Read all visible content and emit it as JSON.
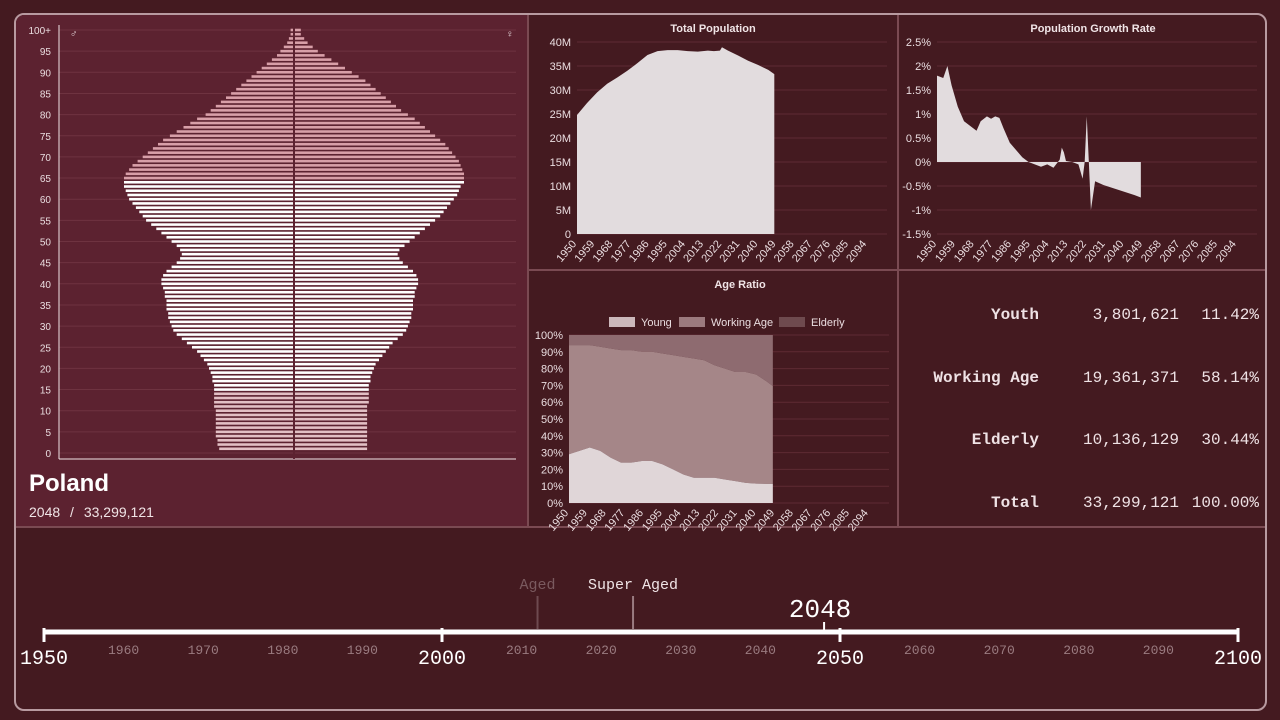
{
  "country": {
    "name": "Poland",
    "year": "2048",
    "separator": "/",
    "total": "33,299,121"
  },
  "pyramid": {
    "male_symbol": "♂",
    "female_symbol": "♀",
    "age_labels": [
      "100+",
      "95",
      "90",
      "85",
      "80",
      "75",
      "70",
      "65",
      "60",
      "55",
      "50",
      "45",
      "40",
      "35",
      "30",
      "25",
      "20",
      "15",
      "10",
      "5",
      "0"
    ],
    "colors": {
      "young": "#e2bfc4",
      "working": "#ffffff",
      "elderly": "#d89fa8"
    },
    "male_by_age_group": [
      [
        0,
        0.0
      ],
      [
        1,
        0.44
      ],
      [
        2,
        0.45
      ],
      [
        3,
        0.45
      ],
      [
        4,
        0.46
      ],
      [
        5,
        0.46
      ],
      [
        6,
        0.46
      ],
      [
        7,
        0.46
      ],
      [
        8,
        0.46
      ],
      [
        9,
        0.46
      ],
      [
        10,
        0.46
      ],
      [
        11,
        0.47
      ],
      [
        12,
        0.47
      ],
      [
        13,
        0.47
      ],
      [
        14,
        0.47
      ],
      [
        15,
        0.47
      ],
      [
        16,
        0.47
      ],
      [
        17,
        0.48
      ],
      [
        18,
        0.48
      ],
      [
        19,
        0.49
      ],
      [
        20,
        0.5
      ],
      [
        21,
        0.51
      ],
      [
        22,
        0.53
      ],
      [
        23,
        0.55
      ],
      [
        24,
        0.57
      ],
      [
        25,
        0.6
      ],
      [
        26,
        0.63
      ],
      [
        27,
        0.66
      ],
      [
        28,
        0.69
      ],
      [
        29,
        0.71
      ],
      [
        30,
        0.72
      ],
      [
        31,
        0.73
      ],
      [
        32,
        0.74
      ],
      [
        33,
        0.74
      ],
      [
        34,
        0.75
      ],
      [
        35,
        0.75
      ],
      [
        36,
        0.75
      ],
      [
        37,
        0.76
      ],
      [
        38,
        0.76
      ],
      [
        39,
        0.77
      ],
      [
        40,
        0.78
      ],
      [
        41,
        0.78
      ],
      [
        42,
        0.77
      ],
      [
        43,
        0.75
      ],
      [
        44,
        0.72
      ],
      [
        45,
        0.69
      ],
      [
        46,
        0.67
      ],
      [
        47,
        0.66
      ],
      [
        48,
        0.67
      ],
      [
        49,
        0.69
      ],
      [
        50,
        0.72
      ],
      [
        51,
        0.75
      ],
      [
        52,
        0.78
      ],
      [
        53,
        0.81
      ],
      [
        54,
        0.84
      ],
      [
        55,
        0.87
      ],
      [
        56,
        0.89
      ],
      [
        57,
        0.91
      ],
      [
        58,
        0.93
      ],
      [
        59,
        0.95
      ],
      [
        60,
        0.97
      ],
      [
        61,
        0.98
      ],
      [
        62,
        0.99
      ],
      [
        63,
        1.0
      ],
      [
        64,
        1.0
      ],
      [
        65,
        1.0
      ],
      [
        66,
        0.99
      ],
      [
        67,
        0.97
      ],
      [
        68,
        0.95
      ],
      [
        69,
        0.92
      ],
      [
        70,
        0.89
      ],
      [
        71,
        0.86
      ],
      [
        72,
        0.83
      ],
      [
        73,
        0.8
      ],
      [
        74,
        0.77
      ],
      [
        75,
        0.73
      ],
      [
        76,
        0.69
      ],
      [
        77,
        0.65
      ],
      [
        78,
        0.61
      ],
      [
        79,
        0.57
      ],
      [
        80,
        0.52
      ],
      [
        81,
        0.49
      ],
      [
        82,
        0.46
      ],
      [
        83,
        0.43
      ],
      [
        84,
        0.4
      ],
      [
        85,
        0.37
      ],
      [
        86,
        0.34
      ],
      [
        87,
        0.31
      ],
      [
        88,
        0.28
      ],
      [
        89,
        0.25
      ],
      [
        90,
        0.22
      ],
      [
        91,
        0.19
      ],
      [
        92,
        0.16
      ],
      [
        93,
        0.13
      ],
      [
        94,
        0.1
      ],
      [
        95,
        0.08
      ],
      [
        96,
        0.06
      ],
      [
        97,
        0.04
      ],
      [
        98,
        0.03
      ],
      [
        99,
        0.02
      ],
      [
        100,
        0.02
      ]
    ],
    "female_by_age_group": [
      [
        0,
        0.0
      ],
      [
        1,
        0.43
      ],
      [
        2,
        0.43
      ],
      [
        3,
        0.43
      ],
      [
        4,
        0.43
      ],
      [
        5,
        0.43
      ],
      [
        6,
        0.43
      ],
      [
        7,
        0.43
      ],
      [
        8,
        0.43
      ],
      [
        9,
        0.43
      ],
      [
        10,
        0.43
      ],
      [
        11,
        0.43
      ],
      [
        12,
        0.44
      ],
      [
        13,
        0.44
      ],
      [
        14,
        0.44
      ],
      [
        15,
        0.44
      ],
      [
        16,
        0.44
      ],
      [
        17,
        0.45
      ],
      [
        18,
        0.45
      ],
      [
        19,
        0.46
      ],
      [
        20,
        0.47
      ],
      [
        21,
        0.48
      ],
      [
        22,
        0.5
      ],
      [
        23,
        0.52
      ],
      [
        24,
        0.54
      ],
      [
        25,
        0.56
      ],
      [
        26,
        0.58
      ],
      [
        27,
        0.61
      ],
      [
        28,
        0.64
      ],
      [
        29,
        0.66
      ],
      [
        30,
        0.67
      ],
      [
        31,
        0.68
      ],
      [
        32,
        0.69
      ],
      [
        33,
        0.69
      ],
      [
        34,
        0.7
      ],
      [
        35,
        0.7
      ],
      [
        36,
        0.7
      ],
      [
        37,
        0.71
      ],
      [
        38,
        0.71
      ],
      [
        39,
        0.72
      ],
      [
        40,
        0.73
      ],
      [
        41,
        0.73
      ],
      [
        42,
        0.72
      ],
      [
        43,
        0.7
      ],
      [
        44,
        0.67
      ],
      [
        45,
        0.64
      ],
      [
        46,
        0.62
      ],
      [
        47,
        0.61
      ],
      [
        48,
        0.62
      ],
      [
        49,
        0.65
      ],
      [
        50,
        0.68
      ],
      [
        51,
        0.71
      ],
      [
        52,
        0.74
      ],
      [
        53,
        0.77
      ],
      [
        54,
        0.8
      ],
      [
        55,
        0.83
      ],
      [
        56,
        0.86
      ],
      [
        57,
        0.88
      ],
      [
        58,
        0.9
      ],
      [
        59,
        0.92
      ],
      [
        60,
        0.94
      ],
      [
        61,
        0.96
      ],
      [
        62,
        0.97
      ],
      [
        63,
        0.98
      ],
      [
        64,
        1.0
      ],
      [
        65,
        1.0
      ],
      [
        66,
        1.0
      ],
      [
        67,
        0.99
      ],
      [
        68,
        0.98
      ],
      [
        69,
        0.97
      ],
      [
        70,
        0.95
      ],
      [
        71,
        0.93
      ],
      [
        72,
        0.91
      ],
      [
        73,
        0.89
      ],
      [
        74,
        0.86
      ],
      [
        75,
        0.83
      ],
      [
        76,
        0.8
      ],
      [
        77,
        0.77
      ],
      [
        78,
        0.74
      ],
      [
        79,
        0.71
      ],
      [
        80,
        0.67
      ],
      [
        81,
        0.63
      ],
      [
        82,
        0.6
      ],
      [
        83,
        0.57
      ],
      [
        84,
        0.54
      ],
      [
        85,
        0.51
      ],
      [
        86,
        0.48
      ],
      [
        87,
        0.45
      ],
      [
        88,
        0.42
      ],
      [
        89,
        0.38
      ],
      [
        90,
        0.34
      ],
      [
        91,
        0.3
      ],
      [
        92,
        0.26
      ],
      [
        93,
        0.22
      ],
      [
        94,
        0.18
      ],
      [
        95,
        0.14
      ],
      [
        96,
        0.11
      ],
      [
        97,
        0.08
      ],
      [
        98,
        0.06
      ],
      [
        99,
        0.04
      ],
      [
        100,
        0.04
      ]
    ]
  },
  "chart_data": [
    {
      "type": "area",
      "title": "Total Population",
      "x_ticks": [
        "1950",
        "1959",
        "1968",
        "1977",
        "1986",
        "1995",
        "2004",
        "2013",
        "2022",
        "2031",
        "2040",
        "2049",
        "2058",
        "2067",
        "2076",
        "2085",
        "2094"
      ],
      "y_ticks": [
        "40M",
        "35M",
        "30M",
        "25M",
        "20M",
        "15M",
        "10M",
        "5M",
        "0"
      ],
      "xlim": [
        1950,
        2100
      ],
      "ylim": [
        0,
        40000000
      ],
      "points": [
        [
          1950,
          24800000
        ],
        [
          1955,
          27300000
        ],
        [
          1960,
          29500000
        ],
        [
          1965,
          31300000
        ],
        [
          1970,
          32600000
        ],
        [
          1975,
          34000000
        ],
        [
          1980,
          35600000
        ],
        [
          1985,
          37300000
        ],
        [
          1990,
          38100000
        ],
        [
          1995,
          38300000
        ],
        [
          2000,
          38300000
        ],
        [
          2005,
          38100000
        ],
        [
          2010,
          38000000
        ],
        [
          2015,
          38200000
        ],
        [
          2018,
          38100000
        ],
        [
          2021,
          38200000
        ],
        [
          2022,
          38900000
        ],
        [
          2025,
          38200000
        ],
        [
          2030,
          37200000
        ],
        [
          2035,
          36100000
        ],
        [
          2040,
          35200000
        ],
        [
          2045,
          34200000
        ],
        [
          2048,
          33299121
        ]
      ],
      "color": "#e2dcde"
    },
    {
      "type": "area",
      "title": "Population Growth Rate",
      "x_ticks": [
        "1950",
        "1959",
        "1968",
        "1977",
        "1986",
        "1995",
        "2004",
        "2013",
        "2022",
        "2031",
        "2040",
        "2049",
        "2058",
        "2067",
        "2076",
        "2085",
        "2094"
      ],
      "y_ticks": [
        "2.5%",
        "2%",
        "1.5%",
        "1%",
        "0.5%",
        "0%",
        "-0.5%",
        "-1%",
        "-1.5%"
      ],
      "xlim": [
        1950,
        2100
      ],
      "ylim": [
        -1.5,
        2.5
      ],
      "points": [
        [
          1950,
          1.8
        ],
        [
          1953,
          1.75
        ],
        [
          1955,
          2.0
        ],
        [
          1957,
          1.6
        ],
        [
          1960,
          1.15
        ],
        [
          1963,
          0.85
        ],
        [
          1966,
          0.75
        ],
        [
          1969,
          0.65
        ],
        [
          1971,
          0.85
        ],
        [
          1974,
          0.95
        ],
        [
          1976,
          0.9
        ],
        [
          1978,
          0.95
        ],
        [
          1980,
          0.92
        ],
        [
          1982,
          0.7
        ],
        [
          1985,
          0.4
        ],
        [
          1988,
          0.25
        ],
        [
          1991,
          0.1
        ],
        [
          1994,
          0.0
        ],
        [
          1997,
          -0.05
        ],
        [
          2000,
          -0.1
        ],
        [
          2003,
          -0.05
        ],
        [
          2006,
          -0.12
        ],
        [
          2009,
          0.05
        ],
        [
          2010,
          0.3
        ],
        [
          2011,
          0.2
        ],
        [
          2012,
          0.02
        ],
        [
          2015,
          0.0
        ],
        [
          2018,
          -0.05
        ],
        [
          2020,
          -0.35
        ],
        [
          2021,
          0.0
        ],
        [
          2022,
          0.95
        ],
        [
          2023,
          0.0
        ],
        [
          2024,
          -1.0
        ],
        [
          2026,
          -0.4
        ],
        [
          2030,
          -0.48
        ],
        [
          2035,
          -0.55
        ],
        [
          2040,
          -0.62
        ],
        [
          2045,
          -0.69
        ],
        [
          2048,
          -0.74
        ]
      ],
      "color": "#e2dcde"
    },
    {
      "type": "area",
      "title": "Age Ratio",
      "legend": [
        "Young",
        "Working Age",
        "Elderly"
      ],
      "legend_colors": [
        "#ccb8bb",
        "#9c7a7e",
        "#6e4a4e"
      ],
      "x_ticks": [
        "1950",
        "1959",
        "1968",
        "1977",
        "1986",
        "1995",
        "2004",
        "2013",
        "2022",
        "2031",
        "2040",
        "2049",
        "2058",
        "2067",
        "2076",
        "2085",
        "2094"
      ],
      "y_ticks": [
        "100%",
        "90%",
        "80%",
        "70%",
        "60%",
        "50%",
        "40%",
        "30%",
        "20%",
        "10%",
        "0%"
      ],
      "xlim": [
        1950,
        2100
      ],
      "ylim": [
        0,
        100
      ],
      "x": [
        1950,
        1955,
        1960,
        1965,
        1970,
        1975,
        1980,
        1985,
        1990,
        1995,
        2000,
        2005,
        2010,
        2015,
        2020,
        2025,
        2030,
        2035,
        2040,
        2045,
        2048
      ],
      "series": [
        {
          "name": "Young",
          "values": [
            29,
            31,
            33,
            31,
            27,
            24,
            24,
            25,
            25,
            23,
            20,
            17,
            15,
            15,
            15,
            14,
            13,
            12,
            11.5,
            11.4,
            11.42
          ]
        },
        {
          "name": "Working Age",
          "values": [
            65,
            63,
            61,
            62,
            65,
            67,
            67,
            65,
            65,
            66,
            68,
            70,
            71,
            70,
            67,
            66,
            65,
            66,
            65,
            61,
            58.14
          ]
        },
        {
          "name": "Elderly",
          "values": [
            6,
            6,
            6,
            7,
            8,
            9,
            9,
            10,
            10,
            11,
            12,
            13,
            14,
            15,
            18,
            20,
            22,
            22,
            23.5,
            27.6,
            30.44
          ]
        }
      ]
    }
  ],
  "stats": [
    {
      "label": "Youth",
      "count": "3,801,621",
      "pct": "11.42%"
    },
    {
      "label": "Working Age",
      "count": "19,361,371",
      "pct": "58.14%"
    },
    {
      "label": "Elderly",
      "count": "10,136,129",
      "pct": "30.44%"
    },
    {
      "label": "Total",
      "count": "33,299,121",
      "pct": "100.00%"
    }
  ],
  "timeline": {
    "start": 1950,
    "end": 2100,
    "major": [
      "1950",
      "2000",
      "2050",
      "2100"
    ],
    "minor": [
      "1960",
      "1970",
      "1980",
      "1990",
      "2010",
      "2020",
      "2030",
      "2040",
      "2060",
      "2070",
      "2080",
      "2090"
    ],
    "current_year": "2048",
    "current_year_value": 2048,
    "markers": [
      {
        "label": "Aged",
        "year": 2012,
        "active": false
      },
      {
        "label": "Super Aged",
        "year": 2024,
        "active": true
      }
    ]
  }
}
